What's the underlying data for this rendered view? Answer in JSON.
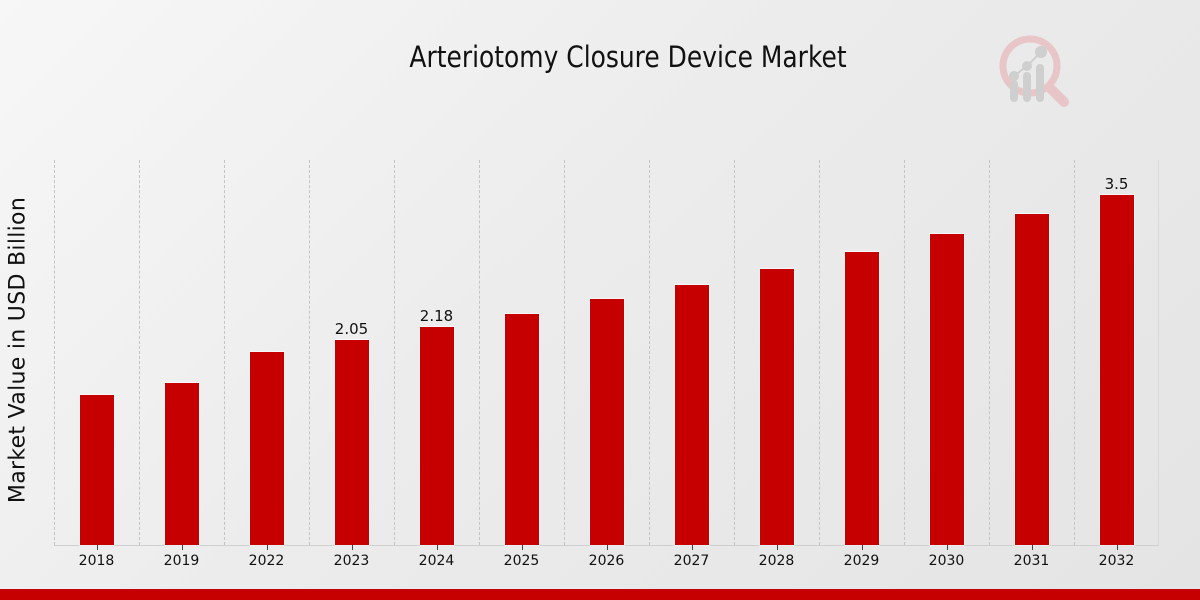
{
  "chart_data": {
    "type": "bar",
    "title": "Arteriotomy Closure Device Market",
    "xlabel": "",
    "ylabel": "Market Value in USD Billion",
    "categories": [
      "2018",
      "2019",
      "2022",
      "2023",
      "2024",
      "2025",
      "2026",
      "2027",
      "2028",
      "2029",
      "2030",
      "2031",
      "2032"
    ],
    "values": [
      1.5,
      1.62,
      1.93,
      2.05,
      2.18,
      2.31,
      2.46,
      2.6,
      2.76,
      2.93,
      3.11,
      3.31,
      3.5
    ],
    "data_labels": {
      "2023": "2.05",
      "2024": "2.18",
      "2032": "3.5"
    },
    "ylim": [
      0,
      3.85
    ],
    "grid": {
      "vertical": true,
      "style": "dashed"
    },
    "legend": null,
    "bar_color": "#c60000"
  },
  "page": {
    "title": "Arteriotomy Closure Device Market",
    "ylabel": "Market Value in USD Billion",
    "logo": "magnifier-chart-logo-icon",
    "footer_color": "#c60000"
  }
}
